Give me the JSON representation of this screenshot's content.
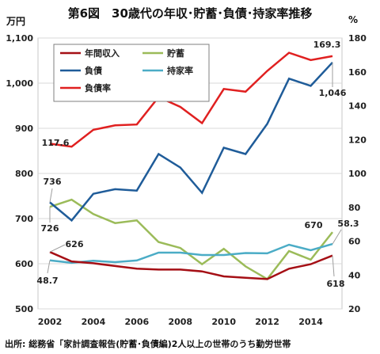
{
  "title": "第6図　30歳代の年収･貯蓄･負債･持家率推移",
  "source": "出所: 総務省「家計調査報告(貯蓄･負債編)2人以上の世帯のうち勤労世帯",
  "chart_data": {
    "type": "line",
    "x": [
      2002,
      2003,
      2004,
      2005,
      2006,
      2007,
      2008,
      2009,
      2010,
      2011,
      2012,
      2013,
      2014,
      2015
    ],
    "x_ticks": [
      2002,
      2004,
      2006,
      2008,
      2010,
      2012,
      2014
    ],
    "left_axis": {
      "unit": "万円",
      "ylim": [
        500,
        1100
      ],
      "ticks": [
        "500",
        "600",
        "700",
        "800",
        "900",
        "1,000",
        "1,100"
      ],
      "tick_values": [
        500,
        600,
        700,
        800,
        900,
        1000,
        1100
      ]
    },
    "right_axis": {
      "unit": "%",
      "ylim": [
        20,
        180
      ],
      "ticks": [
        "20",
        "40",
        "60",
        "80",
        "100",
        "120",
        "140",
        "160",
        "180"
      ],
      "tick_values": [
        20,
        40,
        60,
        80,
        100,
        120,
        140,
        160,
        180
      ]
    },
    "gridlines": "horizontal",
    "legend_position": "top-left",
    "series": [
      {
        "name": "年間収入",
        "axis": "left",
        "color": "#a50f15",
        "values": [
          626,
          605,
          601,
          595,
          589,
          587,
          587,
          583,
          572,
          569,
          566,
          589,
          599,
          618
        ]
      },
      {
        "name": "貯蓄",
        "axis": "left",
        "color": "#9bbb59",
        "values": [
          726,
          742,
          710,
          690,
          696,
          648,
          635,
          599,
          633,
          594,
          566,
          628,
          609,
          670
        ]
      },
      {
        "name": "負債",
        "axis": "left",
        "color": "#1f5c99",
        "values": [
          736,
          696,
          755,
          765,
          762,
          843,
          813,
          757,
          857,
          843,
          910,
          1010,
          994,
          1046
        ]
      },
      {
        "name": "持家率",
        "axis": "right",
        "color": "#4bacc6",
        "values": [
          48.7,
          47.2,
          48.4,
          47.6,
          48.6,
          53.2,
          53.2,
          51.8,
          51.8,
          53.0,
          52.8,
          57.9,
          54.6,
          58.3
        ]
      },
      {
        "name": "負債率",
        "axis": "right",
        "color": "#e02020",
        "values": [
          117.6,
          115.8,
          125.8,
          128.4,
          128.9,
          145.1,
          139.3,
          129.7,
          149.9,
          148.3,
          160.6,
          171.3,
          167.0,
          169.3
        ]
      }
    ],
    "annotations": [
      "117.6",
      "736",
      "726",
      "626",
      "48.7",
      "670",
      "58.3",
      "618",
      "169.3",
      "1,046"
    ]
  }
}
